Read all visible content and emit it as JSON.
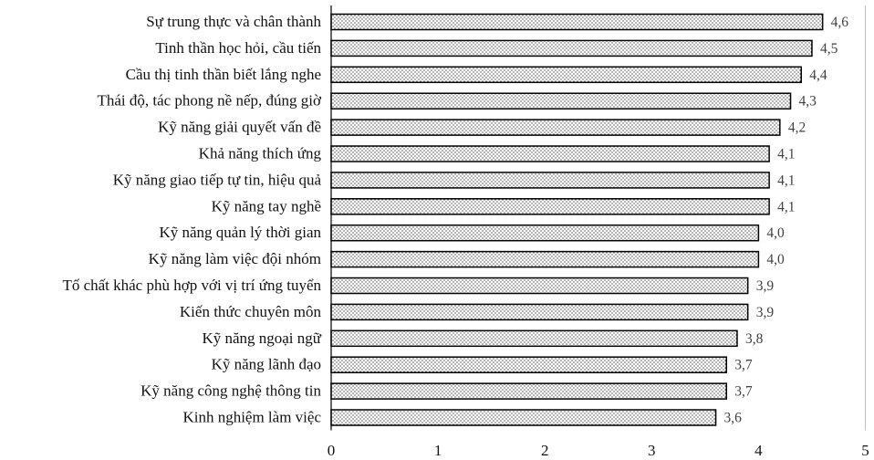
{
  "chart_data": {
    "type": "bar",
    "orientation": "horizontal",
    "categories": [
      "Sự trung thực và chân thành",
      "Tinh thần học hỏi, cầu tiến",
      "Cầu thị tinh thần biết lắng nghe",
      "Thái độ, tác phong nề nếp, đúng giờ",
      "Kỹ năng giải quyết vấn đề",
      "Khả năng thích ứng",
      "Kỹ năng giao tiếp tự tin, hiệu quả",
      "Kỹ năng tay nghề",
      "Kỹ năng quản lý thời gian",
      "Kỹ năng làm việc đội nhóm",
      "Tố chất khác phù hợp với vị trí ứng tuyển",
      "Kiến thức chuyên môn",
      "Kỹ năng ngoại ngữ",
      "Kỹ năng lãnh đạo",
      "Kỹ năng công nghệ thông tin",
      "Kinh nghiệm làm việc"
    ],
    "values": [
      4.6,
      4.5,
      4.4,
      4.3,
      4.2,
      4.1,
      4.1,
      4.1,
      4.0,
      4.0,
      3.9,
      3.9,
      3.8,
      3.7,
      3.7,
      3.6
    ],
    "value_labels": [
      "4,6",
      "4,5",
      "4,4",
      "4,3",
      "4,2",
      "4,1",
      "4,1",
      "4,1",
      "4,0",
      "4,0",
      "3,9",
      "3,9",
      "3,8",
      "3,7",
      "3,7",
      "3,6"
    ],
    "xlim": [
      0,
      5
    ],
    "xticks": [
      "0",
      "1",
      "2",
      "3",
      "4",
      "5"
    ],
    "grid": false,
    "legend": "none",
    "fill_pattern": "dots",
    "colors": {
      "bar_border": "#000000",
      "bar_dots": "#000000",
      "bar_background": "#ffffff",
      "axis": "#000000",
      "plot_edge": "#bfbfbf"
    }
  }
}
